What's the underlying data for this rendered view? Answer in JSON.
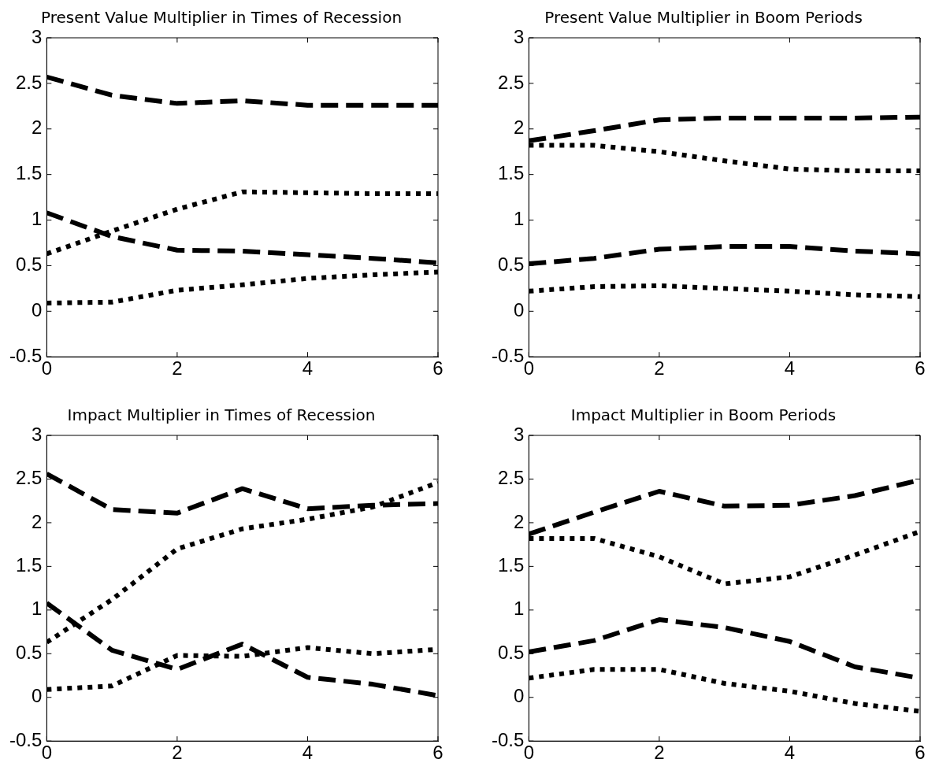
{
  "chart_data": [
    {
      "type": "line",
      "title": "Present Value Multiplier in Times of Recession",
      "x": [
        0,
        1,
        2,
        3,
        4,
        5,
        6
      ],
      "xlim": [
        0,
        6
      ],
      "xticks": [
        0,
        2,
        4,
        6
      ],
      "ylim": [
        -0.5,
        3
      ],
      "yticks": [
        -0.5,
        0,
        0.5,
        1,
        1.5,
        2,
        2.5,
        3
      ],
      "grid": false,
      "series": [
        {
          "color": "#000000",
          "line_style": "dashed",
          "values": [
            2.57,
            2.37,
            2.28,
            2.31,
            2.26,
            2.26,
            2.26
          ]
        },
        {
          "color": "#000000",
          "line_style": "dashed",
          "values": [
            1.08,
            0.82,
            0.67,
            0.66,
            0.62,
            0.58,
            0.53
          ]
        },
        {
          "color": "#000000",
          "line_style": "dotted",
          "values": [
            0.63,
            0.88,
            1.12,
            1.31,
            1.3,
            1.29,
            1.29
          ]
        },
        {
          "color": "#000000",
          "line_style": "dotted",
          "values": [
            0.09,
            0.1,
            0.23,
            0.29,
            0.36,
            0.4,
            0.43
          ]
        }
      ]
    },
    {
      "type": "line",
      "title": "Present Value Multiplier in Boom Periods",
      "x": [
        0,
        1,
        2,
        3,
        4,
        5,
        6
      ],
      "xlim": [
        0,
        6
      ],
      "xticks": [
        0,
        2,
        4,
        6
      ],
      "ylim": [
        -0.5,
        3
      ],
      "yticks": [
        -0.5,
        0,
        0.5,
        1,
        1.5,
        2,
        2.5,
        3
      ],
      "grid": false,
      "series": [
        {
          "color": "#000000",
          "line_style": "dashed",
          "values": [
            1.87,
            1.98,
            2.1,
            2.12,
            2.12,
            2.12,
            2.13
          ]
        },
        {
          "color": "#000000",
          "line_style": "dotted",
          "values": [
            1.82,
            1.82,
            1.75,
            1.65,
            1.56,
            1.54,
            1.54
          ]
        },
        {
          "color": "#000000",
          "line_style": "dashed",
          "values": [
            0.52,
            0.58,
            0.68,
            0.71,
            0.71,
            0.66,
            0.63
          ]
        },
        {
          "color": "#000000",
          "line_style": "dotted",
          "values": [
            0.22,
            0.27,
            0.28,
            0.25,
            0.22,
            0.18,
            0.16
          ]
        }
      ]
    },
    {
      "type": "line",
      "title": "Impact Multiplier in Times of Recession",
      "x": [
        0,
        1,
        2,
        3,
        4,
        5,
        6
      ],
      "xlim": [
        0,
        6
      ],
      "xticks": [
        0,
        2,
        4,
        6
      ],
      "ylim": [
        -0.5,
        3
      ],
      "yticks": [
        -0.5,
        0,
        0.5,
        1,
        1.5,
        2,
        2.5,
        3
      ],
      "grid": false,
      "series": [
        {
          "color": "#000000",
          "line_style": "dashed",
          "values": [
            2.56,
            2.15,
            2.11,
            2.39,
            2.16,
            2.2,
            2.22
          ]
        },
        {
          "color": "#000000",
          "line_style": "dotted",
          "values": [
            0.63,
            1.12,
            1.7,
            1.93,
            2.04,
            2.18,
            2.46
          ]
        },
        {
          "color": "#000000",
          "line_style": "dashed",
          "values": [
            1.08,
            0.54,
            0.32,
            0.61,
            0.23,
            0.15,
            0.02
          ]
        },
        {
          "color": "#000000",
          "line_style": "dotted",
          "values": [
            0.09,
            0.13,
            0.48,
            0.47,
            0.57,
            0.5,
            0.55
          ]
        }
      ]
    },
    {
      "type": "line",
      "title": "Impact Multiplier in Boom Periods",
      "x": [
        0,
        1,
        2,
        3,
        4,
        5,
        6
      ],
      "xlim": [
        0,
        6
      ],
      "xticks": [
        0,
        2,
        4,
        6
      ],
      "ylim": [
        -0.5,
        3
      ],
      "yticks": [
        -0.5,
        0,
        0.5,
        1,
        1.5,
        2,
        2.5,
        3
      ],
      "grid": false,
      "series": [
        {
          "color": "#000000",
          "line_style": "dashed",
          "values": [
            1.87,
            2.12,
            2.36,
            2.19,
            2.2,
            2.31,
            2.49
          ]
        },
        {
          "color": "#000000",
          "line_style": "dotted",
          "values": [
            1.82,
            1.82,
            1.61,
            1.3,
            1.38,
            1.63,
            1.9
          ]
        },
        {
          "color": "#000000",
          "line_style": "dashed",
          "values": [
            0.52,
            0.65,
            0.89,
            0.8,
            0.64,
            0.35,
            0.22
          ]
        },
        {
          "color": "#000000",
          "line_style": "dotted",
          "values": [
            0.22,
            0.32,
            0.32,
            0.16,
            0.07,
            -0.07,
            -0.16
          ]
        }
      ]
    }
  ]
}
